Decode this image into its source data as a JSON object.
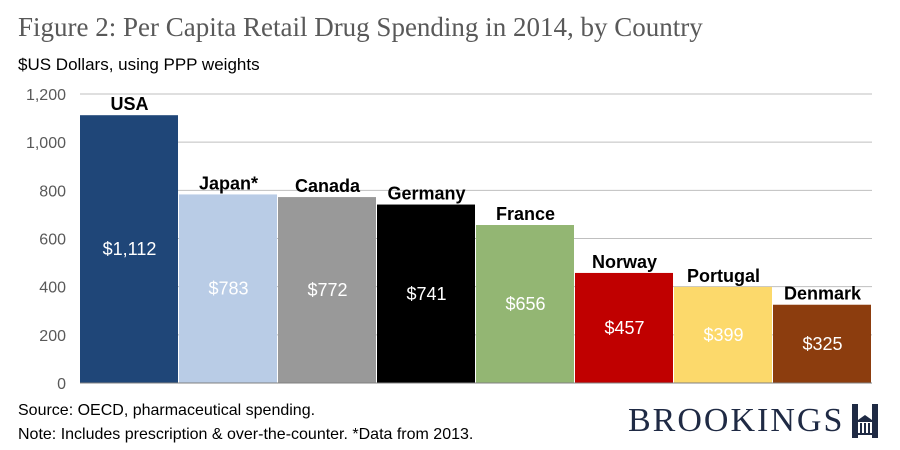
{
  "chart_data": {
    "type": "bar",
    "title": "Figure 2: Per Capita Retail Drug Spending in 2014, by Country",
    "ylabel": "$US Dollars, using PPP weights",
    "xlabel": "",
    "ylim": [
      0,
      1200
    ],
    "yticks": [
      0,
      200,
      400,
      600,
      800,
      1000,
      1200
    ],
    "ytick_labels": [
      "0",
      "200",
      "400",
      "600",
      "800",
      "1,000",
      "1,200"
    ],
    "grid": true,
    "categories": [
      "USA",
      "Japan*",
      "Canada",
      "Germany",
      "France",
      "Norway",
      "Portugal",
      "Denmark"
    ],
    "values": [
      1112,
      783,
      772,
      741,
      656,
      457,
      399,
      325
    ],
    "value_labels": [
      "$1,112",
      "$783",
      "$772",
      "$741",
      "$656",
      "$457",
      "$399",
      "$325"
    ],
    "colors": [
      "#1f4678",
      "#b9cce6",
      "#999999",
      "#000000",
      "#93b673",
      "#c00000",
      "#fcd96b",
      "#8c3d0e"
    ],
    "label_colors": [
      "#ffffff",
      "#ffffff",
      "#ffffff",
      "#ffffff",
      "#ffffff",
      "#ffffff",
      "#ffffff",
      "#ffffff"
    ]
  },
  "footer": {
    "source": "Source: OECD, pharmaceutical spending.",
    "note": "Note: Includes prescription & over-the-counter. *Data from 2013."
  },
  "logo": {
    "text": "BROOKINGS",
    "color": "#1f2a44"
  }
}
